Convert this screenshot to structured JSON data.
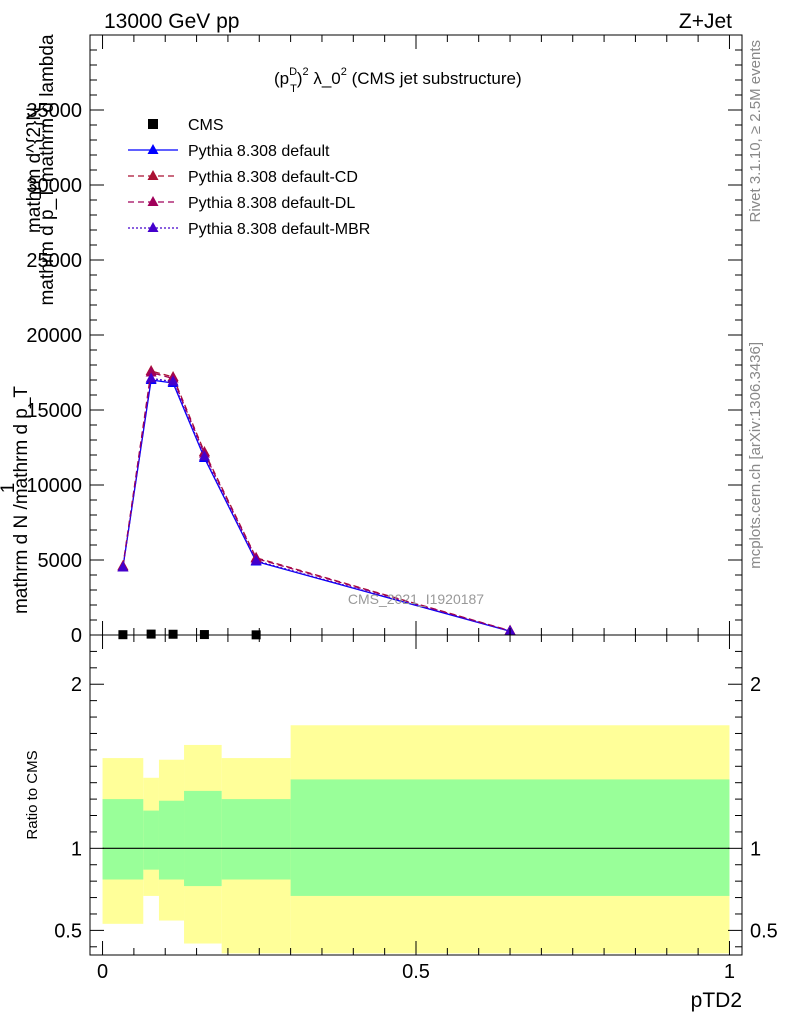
{
  "header": {
    "left": "13000 GeV pp",
    "right": "Z+Jet",
    "side_top": "Rivet 3.1.10, ≥ 2.5M events",
    "side_bottom": "mcplots.cern.ch [arXiv:1306.3436]",
    "watermark": "CMS_2021_I1920187"
  },
  "chart_data": [
    {
      "type": "line",
      "title": "(p_T^D)^2 λ_0^2 (CMS jet substructure)",
      "title_parts": {
        "pre": "(p",
        "sup1": "D",
        "sub1": "T",
        "post": ")",
        "sup2": "2",
        "rest": " λ_0",
        "sup3": "2",
        "tail": " (CMS jet substructure)"
      },
      "ylabel_lines": [
        {
          "text": "1",
          "offset": 0
        },
        {
          "text": "mathrm d N /mathrm d p_T",
          "offset": 1
        },
        {
          "text": "mathrm d^{2}N",
          "offset": 2
        },
        {
          "text": "mathrm d p_T mathrm d lambda",
          "offset": 3
        }
      ],
      "xlim": [
        -0.02,
        1.02
      ],
      "ylim": [
        0,
        40000
      ],
      "yticks": [
        0,
        5000,
        10000,
        15000,
        20000,
        25000,
        30000,
        35000
      ],
      "ytick_labels": [
        "0",
        "5000",
        "10000",
        "15000",
        "20000",
        "25000",
        "30000",
        "35000"
      ],
      "legend_position": "top-left",
      "series": [
        {
          "name": "CMS",
          "color": "#000000",
          "marker": "square",
          "style": "none",
          "x": [
            0.0325,
            0.0775,
            0.1125,
            0.1625,
            0.245
          ],
          "values": [
            20,
            60,
            50,
            30,
            10
          ]
        },
        {
          "name": "Pythia 8.308 default",
          "color": "#0000ff",
          "marker": "triangle",
          "style": "solid",
          "x": [
            0.0325,
            0.0775,
            0.1125,
            0.1625,
            0.245,
            0.65
          ],
          "values": [
            4500,
            17000,
            16800,
            11800,
            4900,
            250
          ]
        },
        {
          "name": "Pythia 8.308 default-CD",
          "color": "#aa1133",
          "marker": "triangle",
          "style": "dashed",
          "x": [
            0.0325,
            0.0775,
            0.1125,
            0.1625,
            0.245,
            0.65
          ],
          "values": [
            4600,
            17600,
            17200,
            12200,
            5150,
            290
          ]
        },
        {
          "name": "Pythia 8.308 default-DL",
          "color": "#a0005a",
          "marker": "triangle",
          "style": "dashed",
          "x": [
            0.0325,
            0.0775,
            0.1125,
            0.1625,
            0.245,
            0.65
          ],
          "values": [
            4550,
            17500,
            17100,
            12100,
            5100,
            280
          ]
        },
        {
          "name": "Pythia 8.308 default-MBR",
          "color": "#4400cc",
          "marker": "triangle",
          "style": "dotted",
          "x": [
            0.0325,
            0.0775,
            0.1125,
            0.1625,
            0.245,
            0.65
          ],
          "values": [
            4500,
            17100,
            16900,
            11900,
            4950,
            260
          ]
        }
      ]
    },
    {
      "type": "area",
      "ylabel": "Ratio to CMS",
      "xlabel": "pTD2",
      "xlim": [
        -0.02,
        1.02
      ],
      "ylim": [
        0.35,
        2.3
      ],
      "yticks": [
        0.5,
        1,
        2
      ],
      "ytick_labels": [
        "0.5",
        "1",
        "2"
      ],
      "xticks": [
        0,
        0.5,
        1
      ],
      "xtick_labels": [
        "0",
        "0.5",
        "1"
      ],
      "reference": 1,
      "bins": [
        {
          "lo": 0.0,
          "hi": 0.065,
          "inner": [
            0.81,
            1.3
          ],
          "outer": [
            0.54,
            1.55
          ]
        },
        {
          "lo": 0.065,
          "hi": 0.09,
          "inner": [
            0.87,
            1.23
          ],
          "outer": [
            0.71,
            1.43
          ]
        },
        {
          "lo": 0.09,
          "hi": 0.13,
          "inner": [
            0.81,
            1.29
          ],
          "outer": [
            0.56,
            1.54
          ]
        },
        {
          "lo": 0.13,
          "hi": 0.19,
          "inner": [
            0.77,
            1.35
          ],
          "outer": [
            0.42,
            1.63
          ]
        },
        {
          "lo": 0.19,
          "hi": 0.3,
          "inner": [
            0.81,
            1.3
          ],
          "outer": [
            0.36,
            1.55
          ]
        },
        {
          "lo": 0.3,
          "hi": 1.0,
          "inner": [
            0.71,
            1.42
          ],
          "outer": [
            0.36,
            1.75
          ]
        }
      ],
      "band_colors": {
        "inner": "#99ff99",
        "outer": "#ffff99"
      }
    }
  ]
}
